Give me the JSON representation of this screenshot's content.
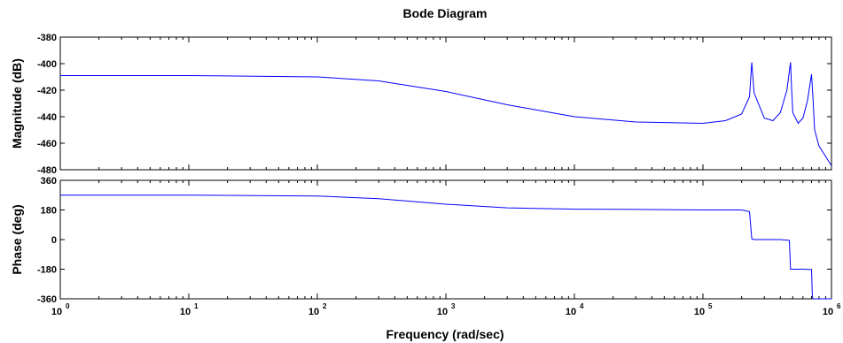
{
  "chart_data": {
    "type": "line",
    "title": "Bode Diagram",
    "xlabel": "Frequency  (rad/sec)",
    "xscale": "log",
    "xlim": [
      1,
      1000000
    ],
    "x_tick_labels": [
      {
        "base": "10",
        "exp": "0"
      },
      {
        "base": "10",
        "exp": "1"
      },
      {
        "base": "10",
        "exp": "2"
      },
      {
        "base": "10",
        "exp": "3"
      },
      {
        "base": "10",
        "exp": "4"
      },
      {
        "base": "10",
        "exp": "5"
      },
      {
        "base": "10",
        "exp": "6"
      }
    ],
    "grid": false,
    "line_color": "#0000ff",
    "panels": [
      {
        "name": "magnitude",
        "ylabel": "Magnitude (dB)",
        "ylim": [
          -480,
          -380
        ],
        "yticks": [
          "-380",
          "-400",
          "-420",
          "-440",
          "-460",
          "-480"
        ],
        "x": [
          1,
          10,
          100,
          300,
          1000,
          3000,
          10000,
          30000,
          100000,
          150000,
          200000,
          230000,
          240000,
          250000,
          300000,
          350000,
          400000,
          450000,
          480000,
          490000,
          500000,
          550000,
          600000,
          650000,
          700000,
          720000,
          730000,
          740000,
          800000,
          900000,
          1000000
        ],
        "y": [
          -409,
          -409,
          -410,
          -413,
          -421,
          -431,
          -440,
          -444,
          -445,
          -443,
          -438,
          -425,
          -399,
          -422,
          -441,
          -443,
          -437,
          -420,
          -399,
          -420,
          -437,
          -445,
          -441,
          -428,
          -408,
          -428,
          -440,
          -450,
          -462,
          -470,
          -477
        ]
      },
      {
        "name": "phase",
        "ylabel": "Phase (deg)",
        "ylim": [
          -360,
          360
        ],
        "yticks": [
          "360",
          "180",
          "0",
          "-180",
          "-360"
        ],
        "x": [
          1,
          10,
          100,
          300,
          1000,
          3000,
          10000,
          30000,
          100000,
          200000,
          230000,
          240000,
          250000,
          300000,
          400000,
          470000,
          480000,
          500000,
          600000,
          700000,
          710000,
          720000,
          800000,
          1000000
        ],
        "y": [
          270,
          270,
          265,
          248,
          215,
          193,
          185,
          183,
          180,
          180,
          170,
          5,
          0,
          0,
          0,
          -5,
          -180,
          -180,
          -180,
          -182,
          -345,
          -360,
          -360,
          -360
        ]
      }
    ]
  }
}
